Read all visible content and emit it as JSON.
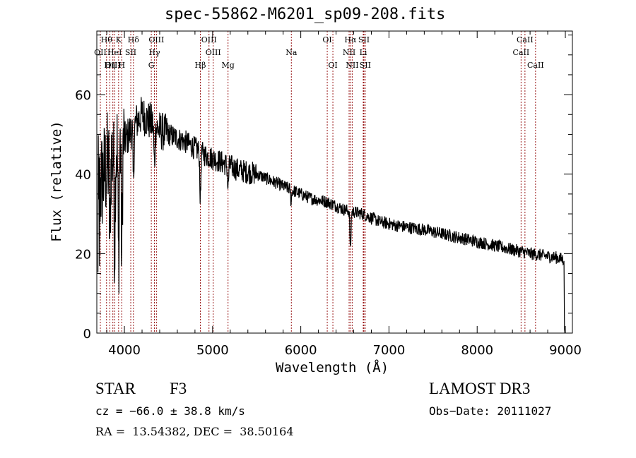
{
  "chart_data": {
    "type": "line",
    "title": "spec-55862-M6201_sp09-208.fits",
    "xlabel": "Wavelength (Å)",
    "ylabel": "Flux (relative)",
    "xlim": [
      3687,
      9080
    ],
    "ylim": [
      0,
      76
    ],
    "xticks": [
      4000,
      5000,
      6000,
      7000,
      8000,
      9000
    ],
    "xtick_labels": [
      "4000",
      "5000",
      "6000",
      "7000",
      "8000",
      "9000"
    ],
    "xminor_step": 200,
    "yticks": [
      0,
      20,
      40,
      60
    ],
    "ytick_labels": [
      "0",
      "20",
      "40",
      "60"
    ],
    "yminor_step": 5,
    "grid": false,
    "line_color": "#000000",
    "marker_line_color": "#9b1c1c",
    "continuum_anchors": {
      "x": [
        3700,
        3800,
        3900,
        4000,
        4100,
        4200,
        4300,
        4400,
        4500,
        4700,
        4900,
        5100,
        5300,
        5500,
        5700,
        5900,
        6100,
        6300,
        6500,
        6700,
        6900,
        7100,
        7400,
        7700,
        8000,
        8300,
        8600,
        8900,
        8980
      ],
      "y": [
        35,
        42,
        47,
        48,
        52,
        55,
        53,
        51,
        50,
        48,
        45,
        43,
        41,
        40,
        38,
        36,
        34,
        33,
        31,
        30,
        28,
        27,
        26,
        24.5,
        23,
        21.5,
        20,
        19,
        18.5
      ]
    },
    "features": [
      {
        "x": 4861,
        "depth": 12
      },
      {
        "x": 4340,
        "depth": 10
      },
      {
        "x": 4102,
        "depth": 14
      },
      {
        "x": 3970,
        "depth": 28
      },
      {
        "x": 3934,
        "depth": 30
      },
      {
        "x": 3889,
        "depth": 24
      },
      {
        "x": 3835,
        "depth": 22
      },
      {
        "x": 5175,
        "depth": 6
      },
      {
        "x": 6563,
        "depth": 10
      },
      {
        "x": 5890,
        "depth": 3
      }
    ],
    "line_markers": [
      {
        "label": "Hθ",
        "x": 3797,
        "row": 0
      },
      {
        "label": "K",
        "x": 3934,
        "row": 0
      },
      {
        "label": "Hδ",
        "x": 4102,
        "row": 0
      },
      {
        "label": "OIII",
        "x": 4363,
        "row": 0
      },
      {
        "label": "OIII",
        "x": 4959,
        "row": 0
      },
      {
        "label": "OI",
        "x": 6300,
        "row": 0
      },
      {
        "label": "Hα",
        "x": 6563,
        "row": 0
      },
      {
        "label": "SII",
        "x": 6716,
        "row": 0
      },
      {
        "label": "CaII",
        "x": 8542,
        "row": 0
      },
      {
        "label": "OII",
        "x": 3727,
        "row": 1
      },
      {
        "label": "HeI",
        "x": 3889,
        "row": 1
      },
      {
        "label": "SII",
        "x": 4072,
        "row": 1
      },
      {
        "label": "Hγ",
        "x": 4340,
        "row": 1
      },
      {
        "label": "OIII",
        "x": 5007,
        "row": 1
      },
      {
        "label": "Na",
        "x": 5893,
        "row": 1
      },
      {
        "label": "NII",
        "x": 6548,
        "row": 1
      },
      {
        "label": "Li",
        "x": 6708,
        "row": 1
      },
      {
        "label": "CaII",
        "x": 8498,
        "row": 1
      },
      {
        "label": "OIII",
        "x": 3869,
        "row": 2
      },
      {
        "label": "Hη",
        "x": 3835,
        "row": 2
      },
      {
        "label": "H",
        "x": 3970,
        "row": 2
      },
      {
        "label": "G",
        "x": 4305,
        "row": 2
      },
      {
        "label": "Hβ",
        "x": 4861,
        "row": 2
      },
      {
        "label": "Mg",
        "x": 5175,
        "row": 2
      },
      {
        "label": "OI",
        "x": 6364,
        "row": 2
      },
      {
        "label": "NII",
        "x": 6583,
        "row": 2
      },
      {
        "label": "SII",
        "x": 6731,
        "row": 2
      },
      {
        "label": "CaII",
        "x": 8662,
        "row": 2
      }
    ],
    "annotations": {
      "object_class": "STAR",
      "subclass": "F3",
      "redshift": "cz = −66.0 ± 38.8 km/s",
      "coords": "RA =  13.54382, DEC =  38.50164",
      "survey": "LAMOST DR3",
      "obs_date": "Obs−Date: 20111027"
    }
  }
}
